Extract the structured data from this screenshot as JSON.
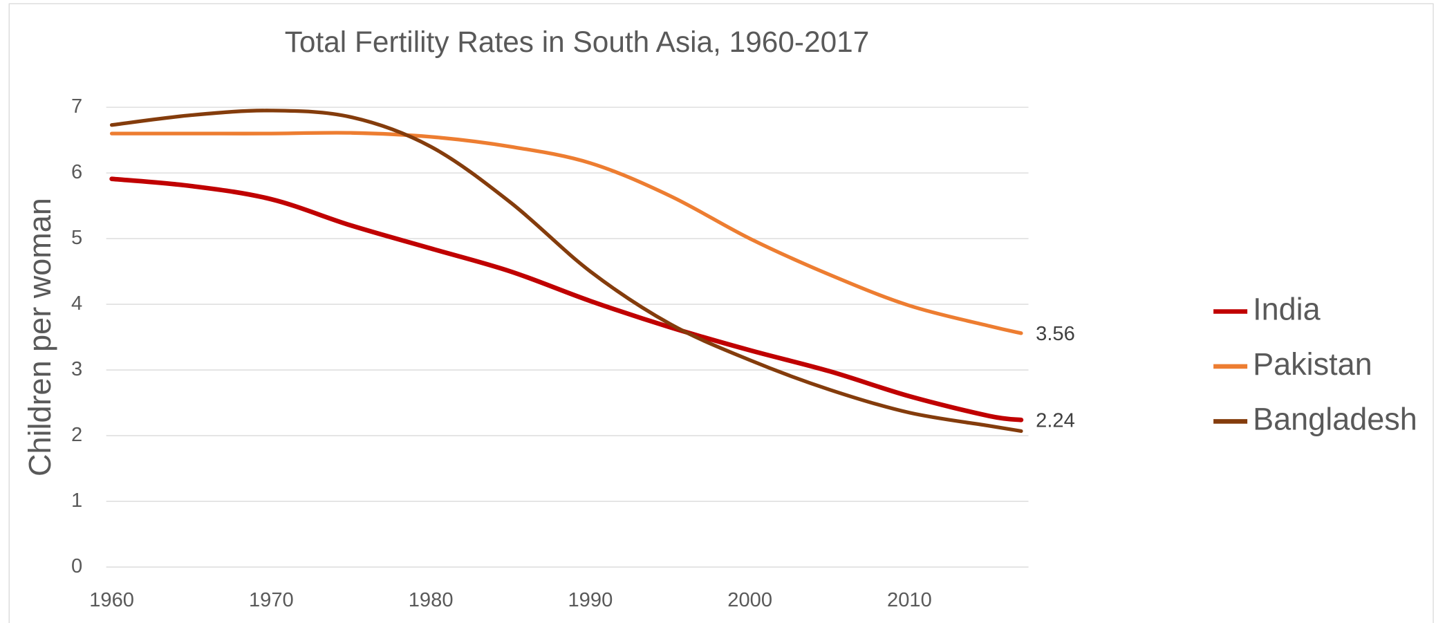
{
  "chart_data": {
    "type": "line",
    "title": "Total Fertility Rates in South Asia, 1960-2017",
    "y_label": "Children per woman",
    "x": [
      1960,
      1965,
      1970,
      1975,
      1980,
      1985,
      1990,
      1995,
      2000,
      2005,
      2010,
      2015,
      2017
    ],
    "series": [
      {
        "name": "India",
        "color": "#c00000",
        "values": [
          5.91,
          5.8,
          5.6,
          5.2,
          4.85,
          4.5,
          4.05,
          3.65,
          3.3,
          2.98,
          2.6,
          2.3,
          2.24
        ]
      },
      {
        "name": "Pakistan",
        "color": "#ed7d31",
        "values": [
          6.6,
          6.6,
          6.6,
          6.61,
          6.55,
          6.4,
          6.15,
          5.65,
          5.0,
          4.45,
          3.98,
          3.67,
          3.56
        ]
      },
      {
        "name": "Bangladesh",
        "color": "#843c0c",
        "values": [
          6.73,
          6.88,
          6.95,
          6.85,
          6.4,
          5.55,
          4.5,
          3.7,
          3.15,
          2.7,
          2.35,
          2.15,
          2.07
        ]
      }
    ],
    "xlim": [
      1960,
      2017
    ],
    "xticks": [
      1960,
      1970,
      1980,
      1990,
      2000,
      2010
    ],
    "ylim": [
      0,
      7
    ],
    "yticks": [
      0,
      1,
      2,
      3,
      4,
      5,
      6,
      7
    ],
    "grid": true,
    "legend": "right"
  }
}
